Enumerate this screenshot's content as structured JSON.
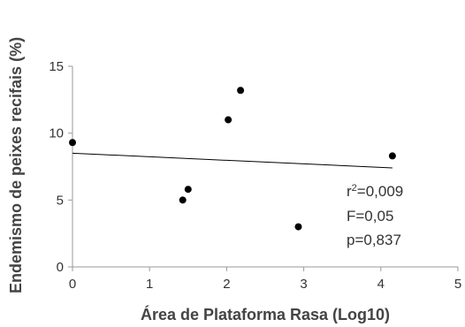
{
  "chart_data": {
    "type": "scatter",
    "xlabel": "Área de Plataforma Rasa (Log10)",
    "ylabel": "Endemismo de  peixes recifais (%)",
    "xlim": [
      0,
      5
    ],
    "ylim": [
      0,
      15
    ],
    "x_ticks": [
      "0",
      "1",
      "2",
      "3",
      "4",
      "5"
    ],
    "y_ticks": [
      "0",
      "5",
      "10",
      "15"
    ],
    "points": [
      {
        "x": 0.0,
        "y": 9.3
      },
      {
        "x": 1.43,
        "y": 5.0
      },
      {
        "x": 1.5,
        "y": 5.8
      },
      {
        "x": 2.02,
        "y": 11.0
      },
      {
        "x": 2.18,
        "y": 13.2
      },
      {
        "x": 2.93,
        "y": 3.0
      },
      {
        "x": 4.15,
        "y": 8.3
      }
    ],
    "trendline": {
      "x": [
        0.0,
        4.15
      ],
      "y": [
        8.5,
        7.4
      ]
    },
    "annotations": {
      "r2_base": "r",
      "r2_sup": "2",
      "r2_value": "=0,009",
      "f": "F=0,05",
      "p": "p=0,837"
    },
    "grid": false,
    "legend": "none",
    "colors": {
      "marker": "#000000",
      "axis": "#9a9a9a",
      "trend": "#000000"
    }
  }
}
